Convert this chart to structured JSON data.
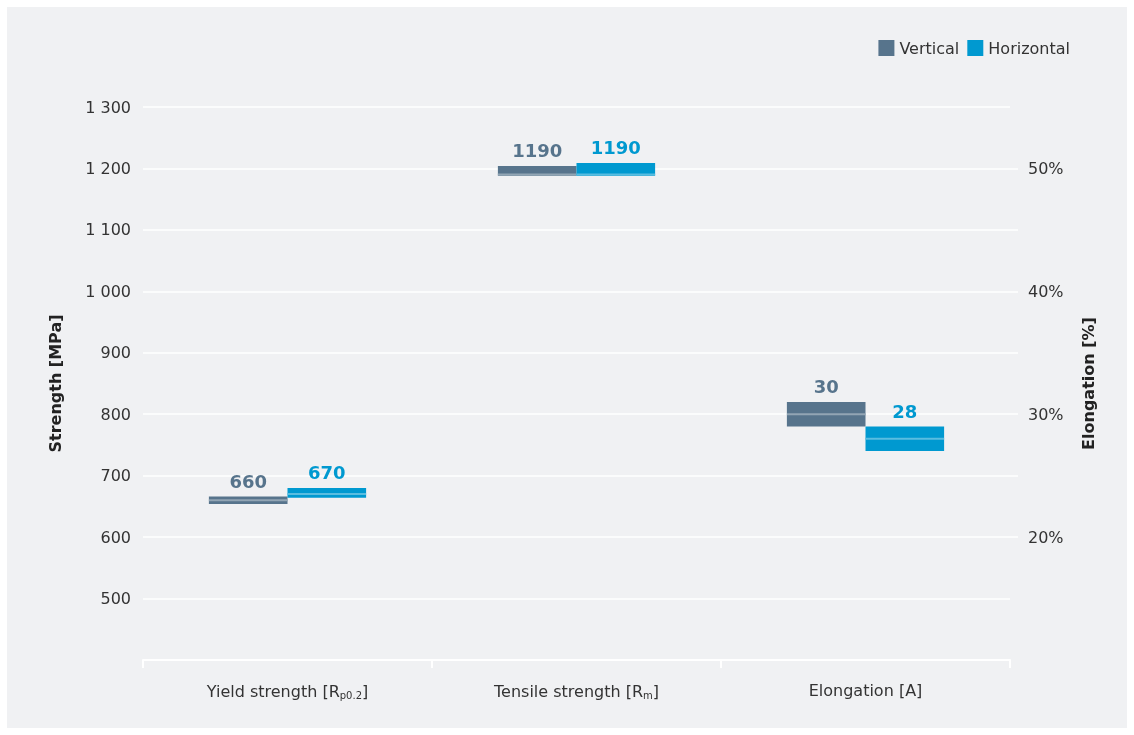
{
  "chart_data": {
    "type": "box",
    "categories": [
      "Yield strength [R$_{p0.2}$]",
      "Tensile strength [R$_{m}$]",
      "Elongation [A]"
    ],
    "ylabel": "Strength [MPa]",
    "y2label": "Elongation [%]",
    "ylim": [
      400,
      1300
    ],
    "yticks": [
      500,
      600,
      700,
      800,
      900,
      {
        "value": 1000,
        "label": "1 000"
      },
      {
        "value": 1100,
        "label": "1 100"
      },
      {
        "value": 1200,
        "label": "1 200"
      },
      {
        "value": 1300,
        "label": "1 300"
      }
    ],
    "y2lim": [
      10,
      55
    ],
    "y2ticks": [
      {
        "value": 20,
        "label": "20%"
      },
      {
        "value": 25,
        "label": null
      },
      {
        "value": 30,
        "label": "30%"
      },
      {
        "value": 35,
        "label": null
      },
      {
        "value": 40,
        "label": "40%"
      },
      {
        "value": 45,
        "label": null
      },
      {
        "value": 50,
        "label": "50%"
      }
    ],
    "series": [
      {
        "name": "Vertical",
        "color": "#57748c",
        "boxes": [
          {
            "low": 654,
            "q1": 654,
            "median": 660,
            "q3": 666,
            "high": 666
          },
          {
            "low": 1188,
            "q1": 1188,
            "median": 1190,
            "q3": 1204,
            "high": 1204
          },
          null
        ],
        "value_labels": [
          "660",
          "1190",
          null
        ]
      },
      {
        "name": "Horizontal",
        "color": "#0099d0",
        "boxes": [
          {
            "low": 664,
            "q1": 664,
            "median": 670,
            "q3": 680,
            "high": 680
          },
          {
            "low": 1188,
            "q1": 1188,
            "median": 1190,
            "q3": 1209,
            "high": 1209
          },
          null
        ],
        "value_labels": [
          "670",
          "1190",
          null
        ]
      },
      {
        "color": "#57748c",
        "axis": "y2",
        "boxes": [
          null,
          null,
          {
            "low": 29,
            "q1": 29,
            "median": 30,
            "q3": 31,
            "high": 31
          }
        ],
        "value_labels": [
          null,
          null,
          "30"
        ]
      },
      {
        "color": "#0099d0",
        "axis": "y2",
        "boxes": [
          null,
          null,
          {
            "low": 27,
            "q1": 27,
            "median": 28,
            "q3": 29,
            "high": 29
          }
        ],
        "value_labels": [
          null,
          null,
          "28"
        ]
      }
    ],
    "grid": "y",
    "legend": "top right"
  }
}
